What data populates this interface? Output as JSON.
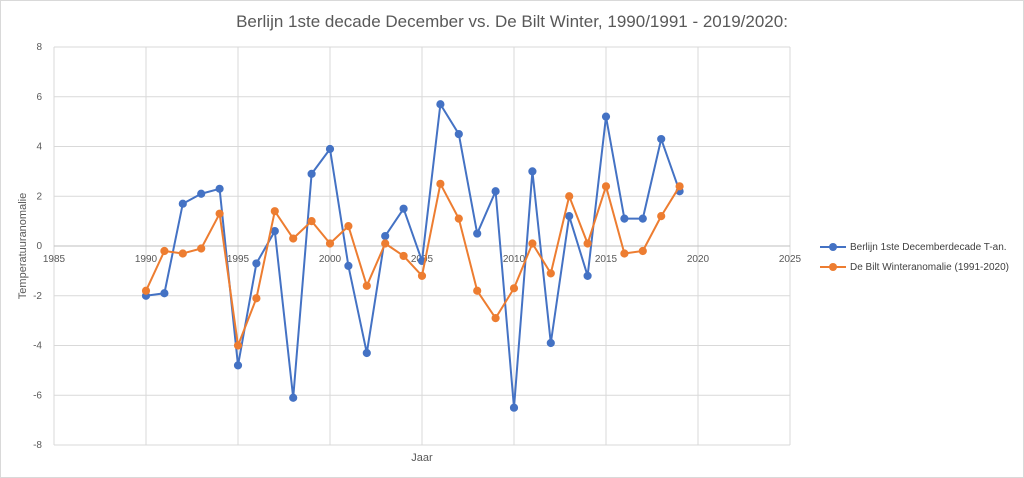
{
  "chart_data": {
    "type": "scatter",
    "title": "Berlijn 1ste decade December vs. De Bilt Winter, 1990/1991 - 2019/2020:",
    "xlabel": "Jaar",
    "ylabel": "Temperatuuranomalie",
    "xlim": [
      1985,
      2025
    ],
    "ylim": [
      -8,
      8
    ],
    "xticks": [
      1985,
      1990,
      1995,
      2000,
      2005,
      2010,
      2015,
      2020,
      2025
    ],
    "yticks": [
      -8,
      -6,
      -4,
      -2,
      0,
      2,
      4,
      6,
      8
    ],
    "grid": true,
    "legend_position": "right",
    "x": [
      1990,
      1991,
      1992,
      1993,
      1994,
      1995,
      1996,
      1997,
      1998,
      1999,
      2000,
      2001,
      2002,
      2003,
      2004,
      2005,
      2006,
      2007,
      2008,
      2009,
      2010,
      2011,
      2012,
      2013,
      2014,
      2015,
      2016,
      2017,
      2018,
      2019
    ],
    "series": [
      {
        "name": "Berlijn 1ste Decemberdecade T-an.",
        "color": "#4472C4",
        "values": [
          -2.0,
          -1.9,
          1.7,
          2.1,
          2.3,
          -4.8,
          -0.7,
          0.6,
          -6.1,
          2.9,
          3.9,
          -0.8,
          -4.3,
          0.4,
          1.5,
          -0.6,
          5.7,
          4.5,
          0.5,
          2.2,
          -6.5,
          3.0,
          -3.9,
          1.2,
          -1.2,
          5.2,
          1.1,
          1.1,
          4.3,
          2.2
        ]
      },
      {
        "name": "De Bilt Winteranomalie (1991-2020)",
        "color": "#ED7D31",
        "values": [
          -1.8,
          -0.2,
          -0.3,
          -0.1,
          1.3,
          -4.0,
          -2.1,
          1.4,
          0.3,
          1.0,
          0.1,
          0.8,
          -1.6,
          0.1,
          -0.4,
          -1.2,
          2.5,
          1.1,
          -1.8,
          -2.9,
          -1.7,
          0.1,
          -1.1,
          2.0,
          0.1,
          2.4,
          -0.3,
          -0.2,
          1.2,
          2.4
        ]
      }
    ]
  }
}
